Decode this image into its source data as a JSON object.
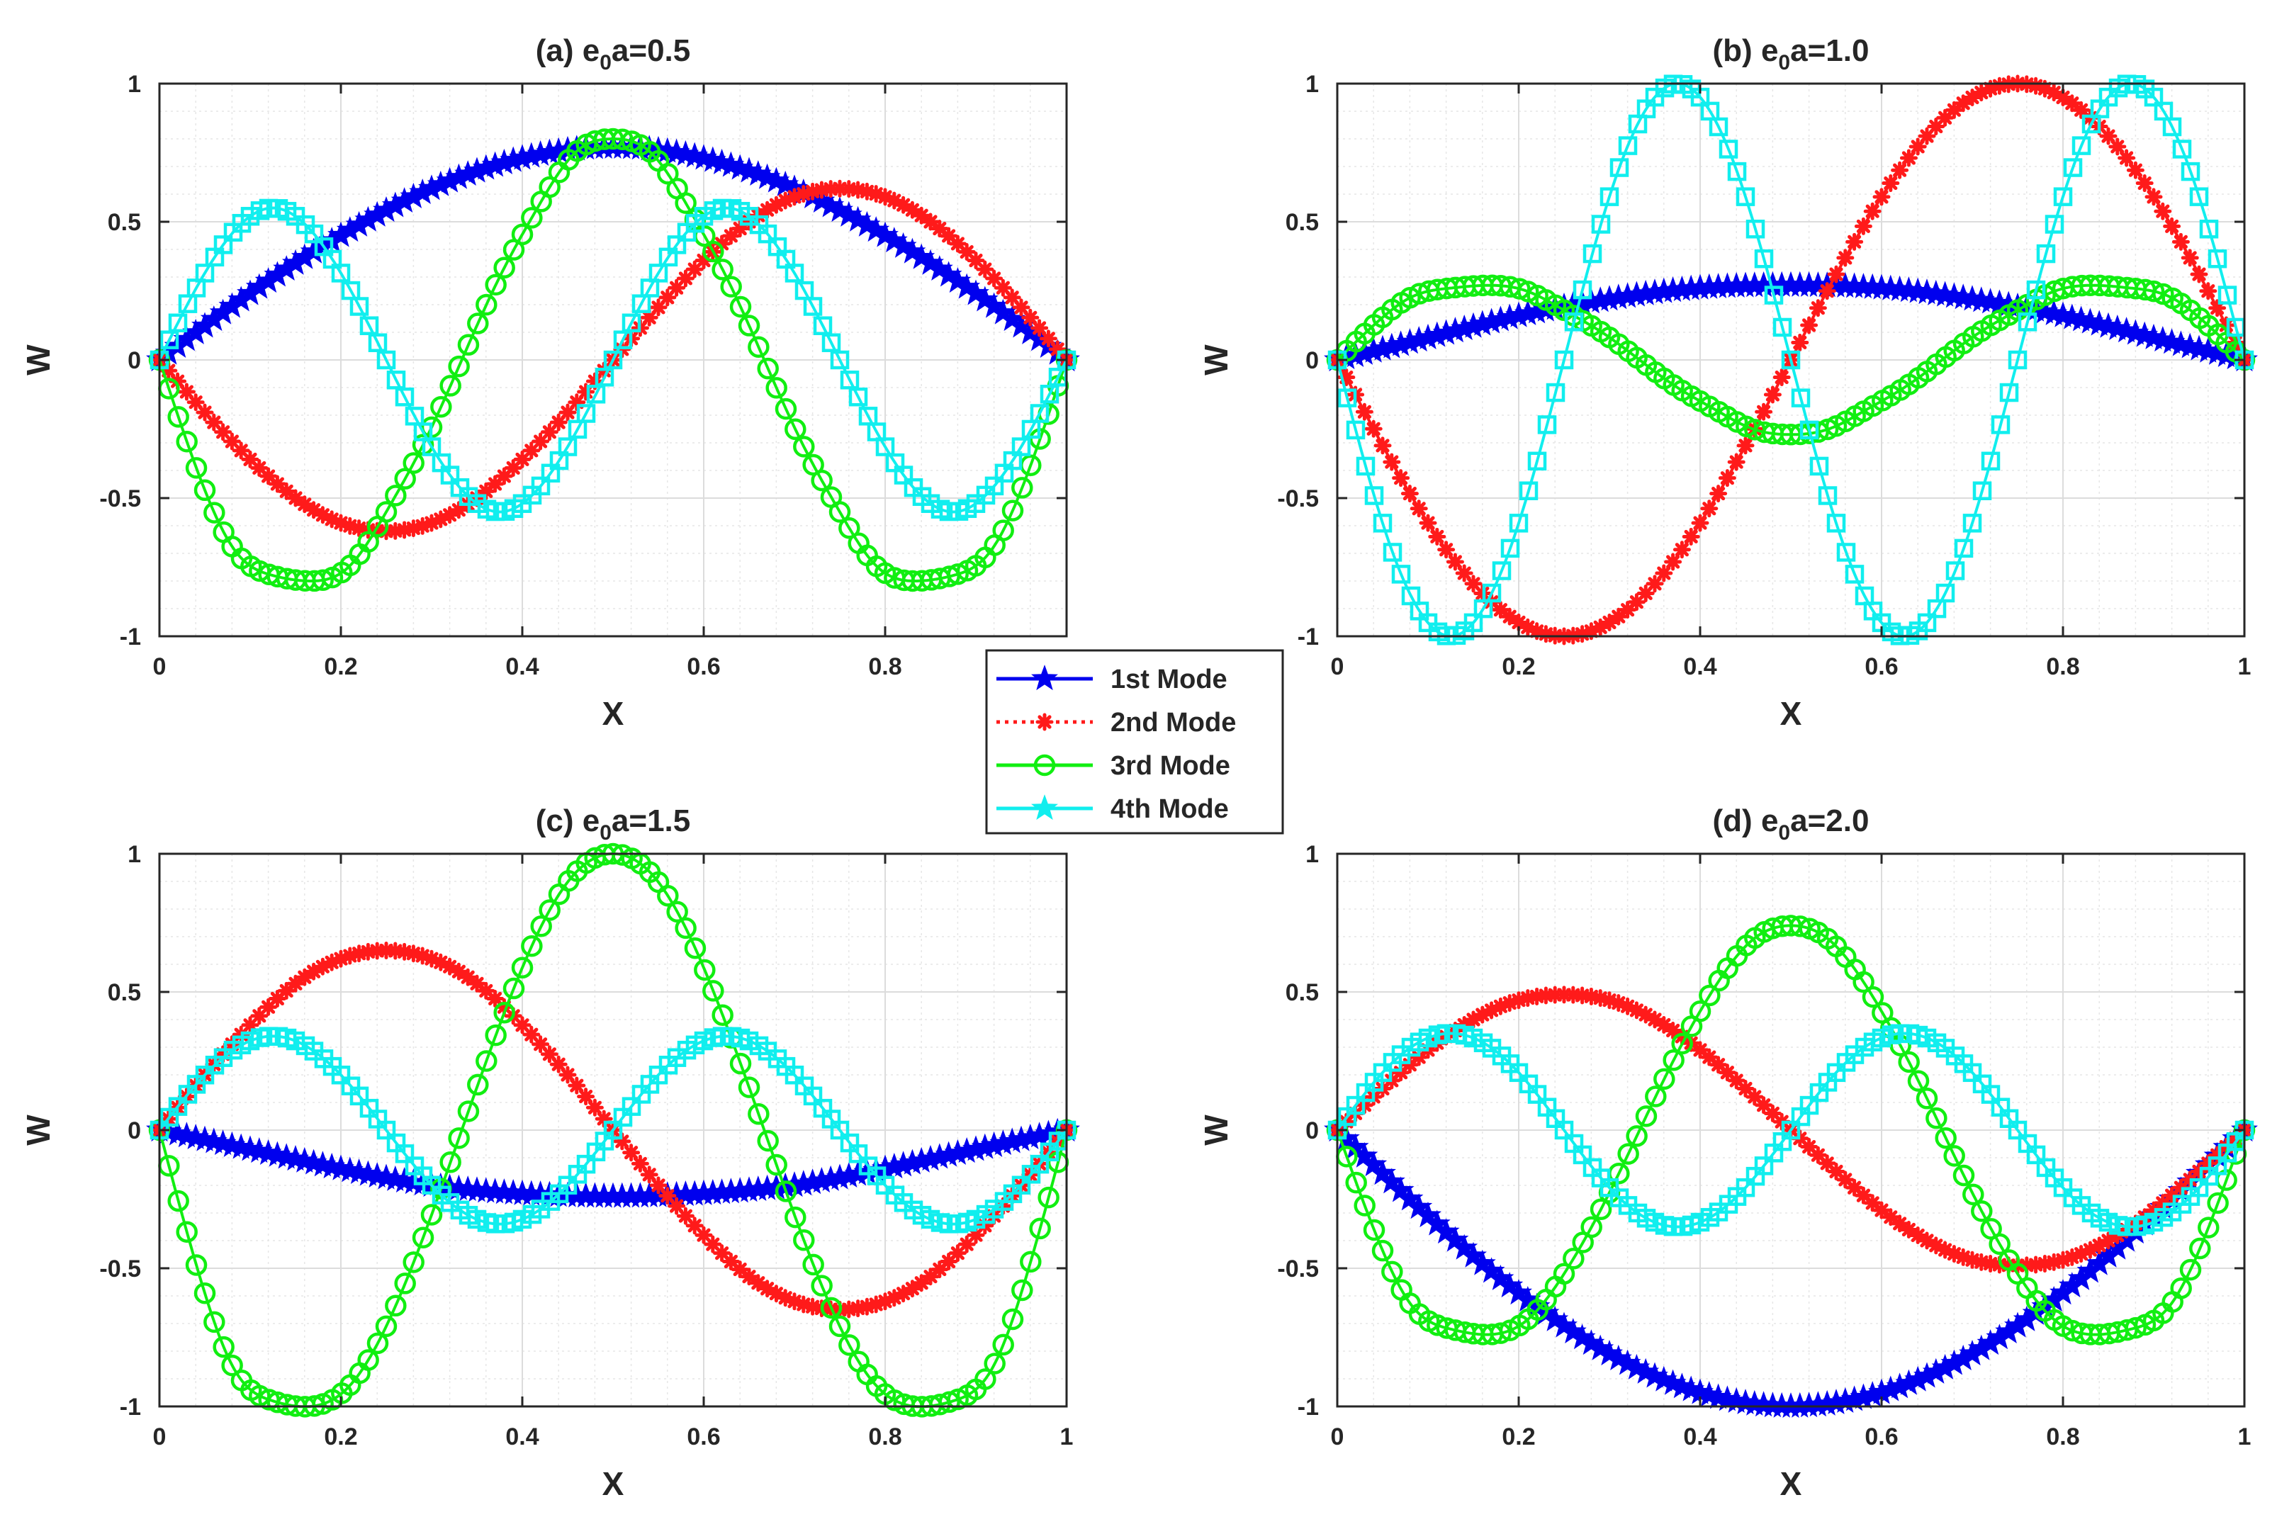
{
  "chart_data": [
    {
      "type": "line",
      "title": "(a) e",
      "title_sub": "0",
      "title_rest": "a=0.5",
      "xlabel": "X",
      "ylabel": "W",
      "xlim": [
        0,
        1
      ],
      "ylim": [
        -1,
        1
      ],
      "xticks": [
        "0",
        "0.2",
        "0.4",
        "0.6",
        "0.8"
      ],
      "yticks": [
        "1",
        "0.5",
        "0",
        "-0.5",
        "-1"
      ],
      "grid": true,
      "series": [
        {
          "name": "1st Mode",
          "x": [
            0,
            0.1,
            0.2,
            0.3,
            0.4,
            0.5,
            0.6,
            0.7,
            0.8,
            0.9,
            1.0
          ],
          "y": [
            0,
            0.24,
            0.45,
            0.62,
            0.73,
            0.77,
            0.73,
            0.62,
            0.45,
            0.24,
            0
          ]
        },
        {
          "name": "2nd Mode",
          "x": [
            0,
            0.05,
            0.1,
            0.15,
            0.2,
            0.25,
            0.3,
            0.35,
            0.4,
            0.45,
            0.5,
            0.55,
            0.6,
            0.65,
            0.7,
            0.75,
            0.8,
            0.85,
            0.9,
            0.95,
            1.0
          ],
          "y": [
            0,
            -0.19,
            -0.36,
            -0.5,
            -0.59,
            -0.62,
            -0.59,
            -0.5,
            -0.36,
            -0.19,
            0,
            0.19,
            0.36,
            0.5,
            0.59,
            0.62,
            0.59,
            0.5,
            0.36,
            0.19,
            0
          ]
        },
        {
          "name": "3rd Mode",
          "x": [
            0,
            0.0417,
            0.0833,
            0.125,
            0.1667,
            0.2083,
            0.25,
            0.2917,
            0.3333,
            0.375,
            0.4167,
            0.4583,
            0.5,
            0.5417,
            0.5833,
            0.625,
            0.6667,
            0.7083,
            0.75,
            0.7917,
            0.8333,
            0.875,
            0.9167,
            0.9583,
            1.0
          ],
          "y": [
            0,
            -0.4,
            -0.69,
            -0.78,
            -0.8,
            -0.75,
            -0.55,
            -0.3,
            0,
            0.3,
            0.55,
            0.75,
            0.8,
            0.75,
            0.55,
            0.3,
            0,
            -0.3,
            -0.55,
            -0.75,
            -0.8,
            -0.78,
            -0.69,
            -0.4,
            0
          ]
        },
        {
          "name": "4th Mode",
          "x": [
            0,
            0.0625,
            0.125,
            0.1875,
            0.25,
            0.3125,
            0.375,
            0.4375,
            0.5,
            0.5625,
            0.625,
            0.6875,
            0.75,
            0.8125,
            0.875,
            0.9375,
            1.0
          ],
          "y": [
            0,
            0.38,
            0.55,
            0.38,
            0,
            -0.38,
            -0.55,
            -0.38,
            0,
            0.38,
            0.55,
            0.38,
            0,
            -0.38,
            -0.55,
            -0.38,
            0
          ]
        }
      ]
    },
    {
      "type": "line",
      "title": "(b) e",
      "title_sub": "0",
      "title_rest": "a=1.0",
      "xlabel": "X",
      "ylabel": "W",
      "xlim": [
        0,
        1
      ],
      "ylim": [
        -1,
        1
      ],
      "xticks": [
        "0",
        "0.2",
        "0.4",
        "0.6",
        "0.8",
        "1"
      ],
      "yticks": [
        "1",
        "0.5",
        "0",
        "-0.5",
        "-1"
      ],
      "grid": true,
      "series": [
        {
          "name": "1st Mode",
          "x": [
            0,
            0.1,
            0.2,
            0.3,
            0.4,
            0.5,
            0.6,
            0.7,
            0.8,
            0.9,
            1.0
          ],
          "y": [
            0,
            0.08,
            0.16,
            0.22,
            0.26,
            0.27,
            0.26,
            0.22,
            0.16,
            0.08,
            0
          ]
        },
        {
          "name": "2nd Mode",
          "x": [
            0,
            0.05,
            0.1,
            0.15,
            0.2,
            0.25,
            0.3,
            0.35,
            0.4,
            0.45,
            0.5,
            0.55,
            0.6,
            0.65,
            0.7,
            0.75,
            0.8,
            0.85,
            0.9,
            0.95,
            1.0
          ],
          "y": [
            0,
            -0.31,
            -0.59,
            -0.81,
            -0.95,
            -1.0,
            -0.95,
            -0.81,
            -0.59,
            -0.31,
            0,
            0.31,
            0.59,
            0.81,
            0.95,
            1.0,
            0.95,
            0.81,
            0.59,
            0.31,
            0
          ]
        },
        {
          "name": "3rd Mode",
          "x": [
            0,
            0.0417,
            0.0833,
            0.125,
            0.1667,
            0.2083,
            0.25,
            0.2917,
            0.3333,
            0.375,
            0.4167,
            0.4583,
            0.5,
            0.5417,
            0.5833,
            0.625,
            0.6667,
            0.7083,
            0.75,
            0.7917,
            0.8333,
            0.875,
            0.9167,
            0.9583,
            1.0
          ],
          "y": [
            0,
            0.13,
            0.23,
            0.26,
            0.27,
            0.25,
            0.18,
            0.1,
            0,
            -0.1,
            -0.18,
            -0.25,
            -0.27,
            -0.25,
            -0.18,
            -0.1,
            0,
            0.1,
            0.18,
            0.25,
            0.27,
            0.26,
            0.23,
            0.13,
            0
          ]
        },
        {
          "name": "4th Mode",
          "x": [
            0,
            0.0625,
            0.125,
            0.1875,
            0.25,
            0.3125,
            0.375,
            0.4375,
            0.5,
            0.5625,
            0.625,
            0.6875,
            0.75,
            0.8125,
            0.875,
            0.9375,
            1.0
          ],
          "y": [
            0,
            -0.71,
            -1.0,
            -0.71,
            0,
            0.71,
            1.0,
            0.71,
            0,
            -0.71,
            -1.0,
            -0.71,
            0,
            0.71,
            1.0,
            0.71,
            0
          ]
        }
      ]
    },
    {
      "type": "line",
      "title": "(c) e",
      "title_sub": "0",
      "title_rest": "a=1.5",
      "xlabel": "X",
      "ylabel": "W",
      "xlim": [
        0,
        1
      ],
      "ylim": [
        -1,
        1
      ],
      "xticks": [
        "0",
        "0.2",
        "0.4",
        "0.6",
        "0.8",
        "1"
      ],
      "yticks": [
        "1",
        "0.5",
        "0",
        "-0.5",
        "-1"
      ],
      "grid": true,
      "series": [
        {
          "name": "1st Mode",
          "x": [
            0,
            0.1,
            0.2,
            0.3,
            0.4,
            0.5,
            0.6,
            0.7,
            0.8,
            0.9,
            1.0
          ],
          "y": [
            0,
            -0.07,
            -0.14,
            -0.2,
            -0.23,
            -0.24,
            -0.23,
            -0.2,
            -0.14,
            -0.07,
            0
          ]
        },
        {
          "name": "2nd Mode",
          "x": [
            0,
            0.05,
            0.1,
            0.15,
            0.2,
            0.25,
            0.3,
            0.35,
            0.4,
            0.45,
            0.5,
            0.55,
            0.6,
            0.65,
            0.7,
            0.75,
            0.8,
            0.85,
            0.9,
            0.95,
            1.0
          ],
          "y": [
            0,
            0.2,
            0.38,
            0.53,
            0.62,
            0.65,
            0.62,
            0.53,
            0.38,
            0.2,
            0,
            -0.2,
            -0.38,
            -0.53,
            -0.62,
            -0.65,
            -0.62,
            -0.53,
            -0.38,
            -0.2,
            0
          ]
        },
        {
          "name": "3rd Mode",
          "x": [
            0,
            0.0417,
            0.0833,
            0.125,
            0.1667,
            0.2083,
            0.25,
            0.2917,
            0.3333,
            0.375,
            0.4167,
            0.4583,
            0.5,
            0.5417,
            0.5833,
            0.625,
            0.6667,
            0.7083,
            0.75,
            0.7917,
            0.8333,
            0.875,
            0.9167,
            0.9583,
            1.0
          ],
          "y": [
            0,
            -0.5,
            -0.87,
            -0.98,
            -1.0,
            -0.93,
            -0.71,
            -0.38,
            0,
            0.38,
            0.71,
            0.93,
            1.0,
            0.93,
            0.71,
            0.38,
            0,
            -0.38,
            -0.71,
            -0.93,
            -1.0,
            -0.98,
            -0.87,
            -0.5,
            0
          ]
        },
        {
          "name": "4th Mode",
          "x": [
            0,
            0.0625,
            0.125,
            0.1875,
            0.25,
            0.3125,
            0.375,
            0.4375,
            0.5,
            0.5625,
            0.625,
            0.6875,
            0.75,
            0.8125,
            0.875,
            0.9375,
            1.0
          ],
          "y": [
            0,
            0.24,
            0.34,
            0.24,
            0,
            -0.24,
            -0.34,
            -0.24,
            0,
            0.24,
            0.34,
            0.24,
            0,
            -0.24,
            -0.34,
            -0.24,
            0
          ]
        }
      ]
    },
    {
      "type": "line",
      "title": "(d) e",
      "title_sub": "0",
      "title_rest": "a=2.0",
      "xlabel": "X",
      "ylabel": "W",
      "xlim": [
        0,
        1
      ],
      "ylim": [
        -1,
        1
      ],
      "xticks": [
        "0",
        "0.2",
        "0.4",
        "0.6",
        "0.8",
        "1"
      ],
      "yticks": [
        "1",
        "0.5",
        "0",
        "-0.5",
        "-1"
      ],
      "grid": true,
      "series": [
        {
          "name": "1st Mode",
          "x": [
            0,
            0.1,
            0.2,
            0.3,
            0.4,
            0.5,
            0.6,
            0.7,
            0.8,
            0.9,
            1.0
          ],
          "y": [
            0,
            -0.31,
            -0.59,
            -0.81,
            -0.95,
            -1.0,
            -0.95,
            -0.81,
            -0.59,
            -0.31,
            0
          ]
        },
        {
          "name": "2nd Mode",
          "x": [
            0,
            0.05,
            0.1,
            0.15,
            0.2,
            0.25,
            0.3,
            0.35,
            0.4,
            0.45,
            0.5,
            0.55,
            0.6,
            0.65,
            0.7,
            0.75,
            0.8,
            0.85,
            0.9,
            0.95,
            1.0
          ],
          "y": [
            0,
            0.15,
            0.29,
            0.4,
            0.47,
            0.49,
            0.47,
            0.4,
            0.29,
            0.15,
            0,
            -0.15,
            -0.29,
            -0.4,
            -0.47,
            -0.49,
            -0.47,
            -0.4,
            -0.29,
            -0.15,
            0
          ]
        },
        {
          "name": "3rd Mode",
          "x": [
            0,
            0.0417,
            0.0833,
            0.125,
            0.1667,
            0.2083,
            0.25,
            0.2917,
            0.3333,
            0.375,
            0.4167,
            0.4583,
            0.5,
            0.5417,
            0.5833,
            0.625,
            0.6667,
            0.7083,
            0.75,
            0.7917,
            0.8333,
            0.875,
            0.9167,
            0.9583,
            1.0
          ],
          "y": [
            0,
            -0.37,
            -0.64,
            -0.72,
            -0.74,
            -0.69,
            -0.52,
            -0.28,
            0,
            0.28,
            0.52,
            0.69,
            0.74,
            0.69,
            0.52,
            0.28,
            0,
            -0.28,
            -0.52,
            -0.69,
            -0.74,
            -0.72,
            -0.64,
            -0.37,
            0
          ]
        },
        {
          "name": "4th Mode",
          "x": [
            0,
            0.0625,
            0.125,
            0.1875,
            0.25,
            0.3125,
            0.375,
            0.4375,
            0.5,
            0.5625,
            0.625,
            0.6875,
            0.75,
            0.8125,
            0.875,
            0.9375,
            1.0
          ],
          "y": [
            0,
            0.25,
            0.35,
            0.25,
            0,
            -0.25,
            -0.35,
            -0.25,
            0,
            0.25,
            0.35,
            0.25,
            0,
            -0.25,
            -0.35,
            -0.25,
            0
          ]
        }
      ]
    }
  ],
  "legend": {
    "placement": "center",
    "items": [
      {
        "label": "1st Mode",
        "marker": "star",
        "line": "solid"
      },
      {
        "label": "2nd Mode",
        "marker": "asterisk",
        "line": "dotted"
      },
      {
        "label": "3rd Mode",
        "marker": "circle",
        "line": "solid"
      },
      {
        "label": "4th Mode",
        "marker": "star",
        "line": "solid"
      }
    ]
  },
  "colors": {
    "1st Mode": "#0000ee",
    "2nd Mode": "#ff1a1a",
    "3rd Mode": "#11ee11",
    "4th Mode": "#11eeee",
    "axis": "#262626",
    "grid": "#dcdcdc"
  }
}
